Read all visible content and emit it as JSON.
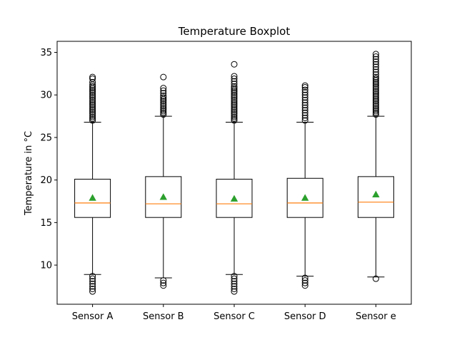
{
  "chart_data": {
    "type": "boxplot",
    "title": "Temperature Boxplot",
    "xlabel": "",
    "ylabel": "Temperature in °C",
    "ylim": [
      5.4,
      36.3
    ],
    "yticks": [
      10,
      15,
      20,
      25,
      30,
      35
    ],
    "grid": false,
    "legend": "none",
    "categories": [
      "Sensor A",
      "Sensor B",
      "Sensor C",
      "Sensor D",
      "Sensor e"
    ],
    "series": [
      {
        "category": "Sensor A",
        "whisker_low": 8.9,
        "q1": 15.6,
        "median": 17.3,
        "mean": 17.9,
        "q3": 20.1,
        "whisker_high": 26.8,
        "outliers_high": [
          27.0,
          27.2,
          27.4,
          27.6,
          27.8,
          28.0,
          28.2,
          28.4,
          28.6,
          28.8,
          29.0,
          29.2,
          29.4,
          29.6,
          29.8,
          30.0,
          30.2,
          30.4,
          30.6,
          30.8,
          31.0,
          31.2,
          31.5,
          31.9,
          32.1
        ],
        "outliers_low": [
          8.7,
          8.4,
          8.1,
          7.8,
          7.5,
          7.2,
          6.9
        ]
      },
      {
        "category": "Sensor B",
        "whisker_low": 8.5,
        "q1": 15.6,
        "median": 17.2,
        "mean": 18.0,
        "q3": 20.4,
        "whisker_high": 27.5,
        "outliers_high": [
          27.7,
          27.9,
          28.1,
          28.3,
          28.5,
          28.7,
          28.9,
          29.1,
          29.3,
          29.5,
          29.7,
          29.9,
          30.2,
          30.5,
          30.8,
          32.1
        ],
        "outliers_low": [
          8.2,
          7.9,
          7.6
        ]
      },
      {
        "category": "Sensor C",
        "whisker_low": 8.9,
        "q1": 15.6,
        "median": 17.2,
        "mean": 17.8,
        "q3": 20.1,
        "whisker_high": 26.8,
        "outliers_high": [
          27.0,
          27.2,
          27.4,
          27.6,
          27.8,
          28.0,
          28.2,
          28.4,
          28.6,
          28.8,
          29.0,
          29.2,
          29.4,
          29.6,
          29.8,
          30.0,
          30.2,
          30.4,
          30.6,
          30.8,
          31.0,
          31.3,
          31.6,
          31.9,
          32.2,
          33.6
        ],
        "outliers_low": [
          8.7,
          8.4,
          8.1,
          7.8,
          7.5,
          7.2,
          6.9
        ]
      },
      {
        "category": "Sensor D",
        "whisker_low": 8.7,
        "q1": 15.6,
        "median": 17.3,
        "mean": 17.9,
        "q3": 20.2,
        "whisker_high": 26.8,
        "outliers_high": [
          27.0,
          27.3,
          27.6,
          27.9,
          28.2,
          28.5,
          28.8,
          29.1,
          29.4,
          29.7,
          30.0,
          30.3,
          30.6,
          30.9,
          31.1
        ],
        "outliers_low": [
          8.5,
          8.2,
          7.9,
          7.6
        ]
      },
      {
        "category": "Sensor e",
        "whisker_low": 8.6,
        "q1": 15.6,
        "median": 17.4,
        "mean": 18.3,
        "q3": 20.4,
        "whisker_high": 27.5,
        "outliers_high": [
          27.7,
          27.9,
          28.1,
          28.3,
          28.5,
          28.7,
          28.9,
          29.1,
          29.3,
          29.5,
          29.7,
          29.9,
          30.1,
          30.3,
          30.5,
          30.7,
          30.9,
          31.1,
          31.3,
          31.5,
          31.7,
          31.9,
          32.1,
          32.4,
          32.7,
          33.0,
          33.3,
          33.6,
          33.9,
          34.2,
          34.5,
          34.8
        ],
        "outliers_low": [
          8.4
        ]
      }
    ],
    "colors": {
      "box": "#000000",
      "median": "#ff7f0e",
      "mean": "#2ca02c",
      "outlier": "#000000"
    }
  }
}
